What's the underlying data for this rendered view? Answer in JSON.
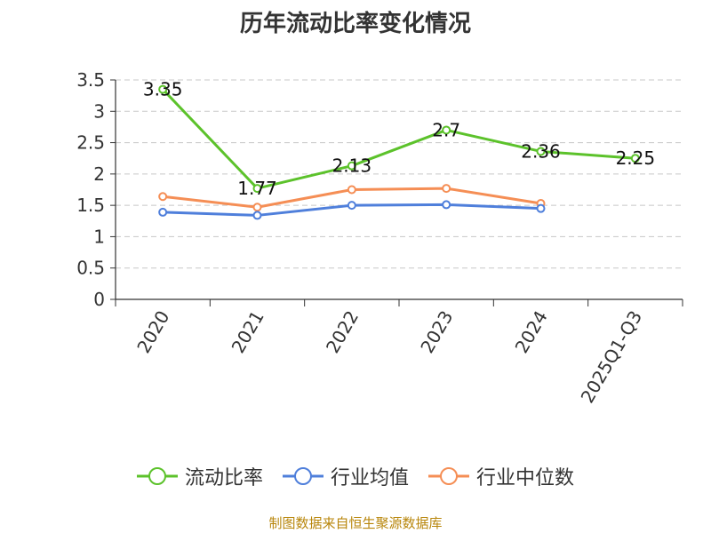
{
  "chart_data": {
    "type": "line",
    "title": "历年流动比率变化情况",
    "categories": [
      "2020",
      "2021",
      "2022",
      "2023",
      "2024",
      "2025Q1-Q3"
    ],
    "ylim": [
      0,
      3.5
    ],
    "yticks": [
      "0",
      "0.5",
      "1",
      "1.5",
      "2",
      "2.5",
      "3",
      "3.5"
    ],
    "grid": true,
    "legend_position": "bottom",
    "series": [
      {
        "name": "流动比率",
        "color": "#5cc22b",
        "values": [
          3.35,
          1.77,
          2.13,
          2.7,
          2.36,
          2.25
        ],
        "labels": [
          "3.35",
          "1.77",
          "2.13",
          "2.7",
          "2.36",
          "2.25"
        ]
      },
      {
        "name": "行业均值",
        "color": "#4f7fdb",
        "values": [
          1.39,
          1.34,
          1.5,
          1.51,
          1.45,
          null
        ]
      },
      {
        "name": "行业中位数",
        "color": "#f58e55",
        "values": [
          1.64,
          1.47,
          1.75,
          1.77,
          1.53,
          null
        ]
      }
    ]
  },
  "footer": {
    "source": "制图数据来自恒生聚源数据库"
  }
}
